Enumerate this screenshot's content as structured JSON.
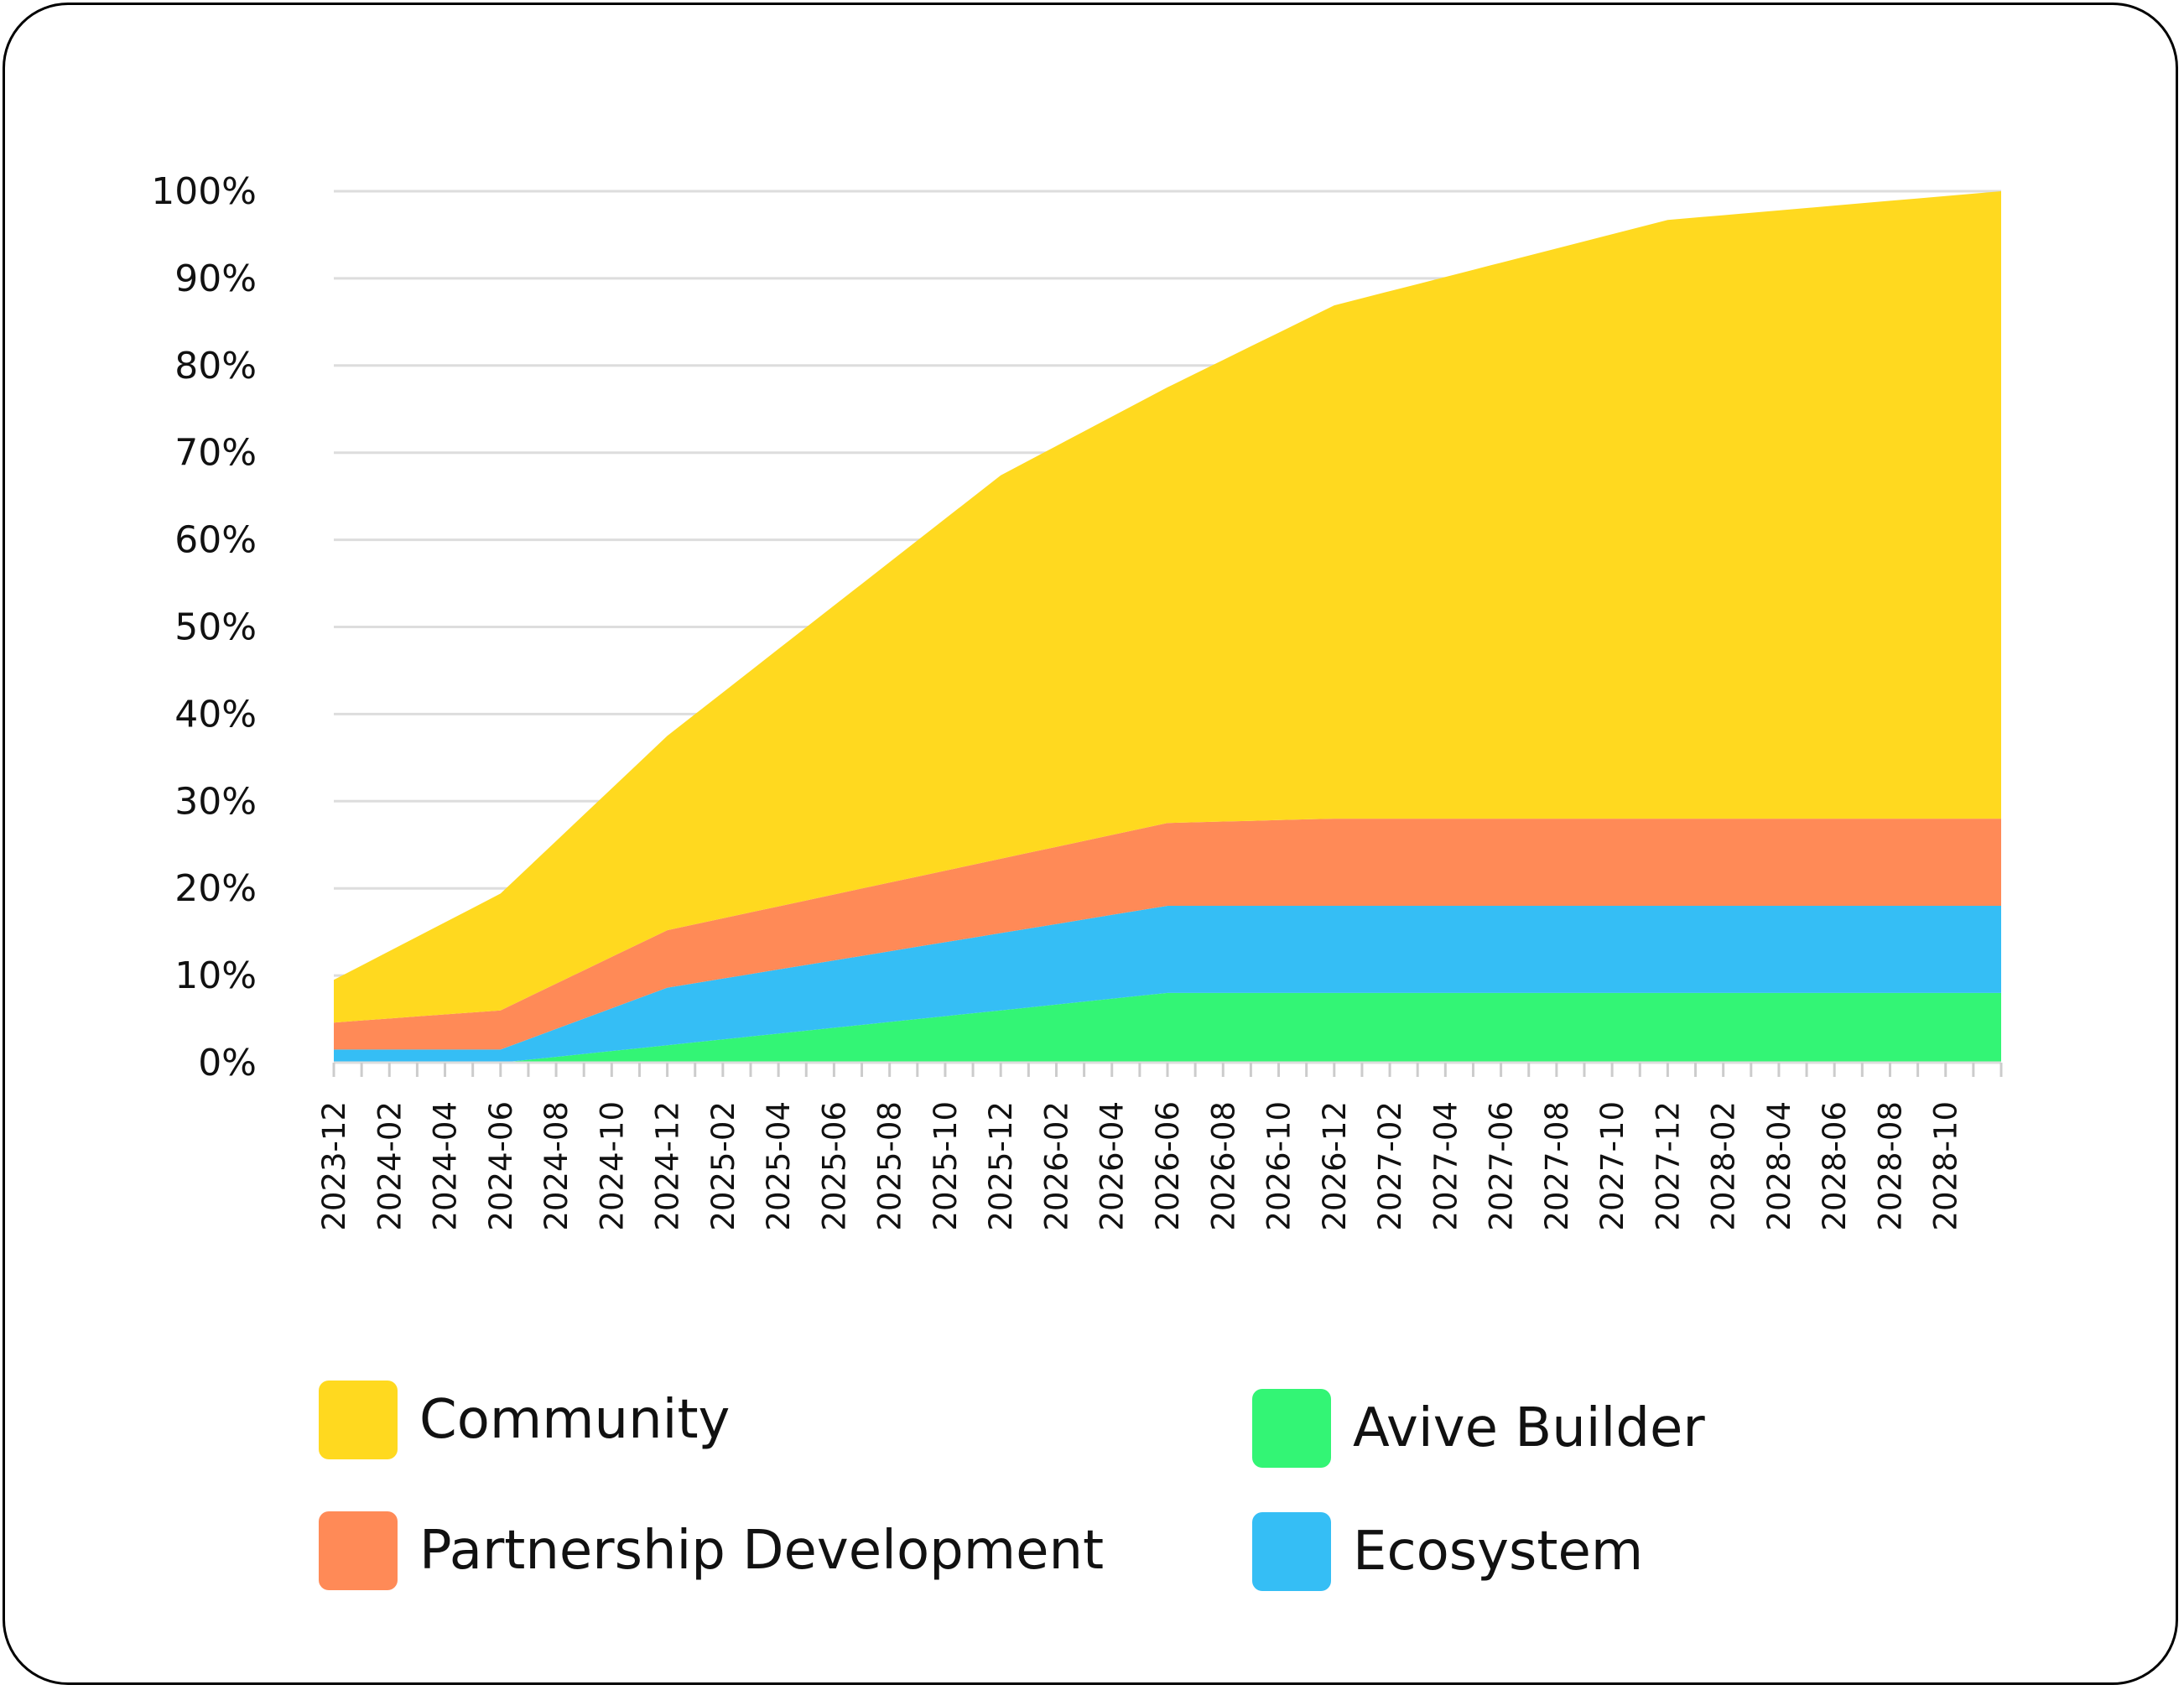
{
  "chart_data": {
    "type": "area",
    "stacked": true,
    "x": [
      "2023-12",
      "2024-01",
      "2024-02",
      "2024-03",
      "2024-04",
      "2024-05",
      "2024-06",
      "2024-07",
      "2024-08",
      "2024-09",
      "2024-10",
      "2024-11",
      "2024-12",
      "2025-01",
      "2025-02",
      "2025-03",
      "2025-04",
      "2025-05",
      "2025-06",
      "2025-07",
      "2025-08",
      "2025-09",
      "2025-10",
      "2025-11",
      "2025-12",
      "2026-01",
      "2026-02",
      "2026-03",
      "2026-04",
      "2026-05",
      "2026-06",
      "2026-07",
      "2026-08",
      "2026-09",
      "2026-10",
      "2026-11",
      "2026-12",
      "2027-01",
      "2027-02",
      "2027-03",
      "2027-04",
      "2027-05",
      "2027-06",
      "2027-07",
      "2027-08",
      "2027-09",
      "2027-10",
      "2027-11",
      "2027-12",
      "2028-01",
      "2028-02",
      "2028-03",
      "2028-04",
      "2028-05",
      "2028-06",
      "2028-07",
      "2028-08",
      "2028-09",
      "2028-10",
      "2028-11",
      "2028-12"
    ],
    "x_tick_labels": [
      "2023-12",
      "2024-02",
      "2024-04",
      "2024-06",
      "2024-08",
      "2024-10",
      "2024-12",
      "2025-02",
      "2025-04",
      "2025-06",
      "2025-08",
      "2025-10",
      "2025-12",
      "2026-02",
      "2026-04",
      "2026-06",
      "2026-08",
      "2026-10",
      "2026-12",
      "2027-02",
      "2027-04",
      "2027-06",
      "2027-08",
      "2027-10",
      "2027-12",
      "2028-02",
      "2028-04",
      "2028-06",
      "2028-08",
      "2028-10"
    ],
    "y_tick_labels": [
      "0%",
      "10%",
      "20%",
      "30%",
      "40%",
      "50%",
      "60%",
      "70%",
      "80%",
      "90%",
      "100%"
    ],
    "ylim": [
      0,
      100
    ],
    "grid": true,
    "legend_position": "bottom",
    "series_boundaries_note": "",
    "series": [
      {
        "name": "Avive Builder",
        "color": "#33F575",
        "keypoints": [
          [
            0,
            0
          ],
          [
            6,
            0
          ],
          [
            30,
            8
          ],
          [
            60,
            8
          ]
        ]
      },
      {
        "name": "Ecosystem",
        "color": "#35BEF5",
        "keypoints": [
          [
            0,
            1.5
          ],
          [
            6,
            1.5
          ],
          [
            12,
            6.6
          ],
          [
            30,
            10
          ],
          [
            36,
            10
          ],
          [
            60,
            10
          ]
        ]
      },
      {
        "name": "Partnership Development",
        "color": "#FF8A57",
        "keypoints": [
          [
            0,
            3.1
          ],
          [
            6,
            4.5
          ],
          [
            12,
            6.6
          ],
          [
            30,
            9.5
          ],
          [
            36,
            10
          ],
          [
            60,
            10
          ]
        ]
      },
      {
        "name": "Community",
        "color": "#FFD91F",
        "keypoints": [
          [
            0,
            4.9
          ],
          [
            6,
            13.4
          ],
          [
            12,
            22.3
          ],
          [
            24,
            44
          ],
          [
            30,
            50
          ],
          [
            36,
            58.9
          ],
          [
            48,
            68.7
          ],
          [
            60,
            72
          ]
        ]
      }
    ]
  },
  "legend": {
    "items": [
      {
        "label": "Community",
        "color": "#FFD91F"
      },
      {
        "label": "Partnership Development",
        "color": "#FF8A57"
      },
      {
        "label": "Avive Builder",
        "color": "#33F575"
      },
      {
        "label": "Ecosystem",
        "color": "#35BEF5"
      }
    ]
  }
}
